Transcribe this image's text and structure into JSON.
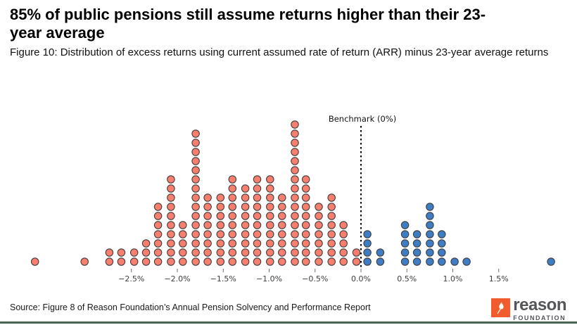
{
  "chart_data": {
    "type": "scatter",
    "subtype": "dot-distribution-histogram",
    "title": "85% of public pensions still assume returns higher than their 23-year average",
    "subtitle": "Figure 10: Distribution of excess returns using current assumed rate of return (ARR) minus 23-year average returns",
    "xlabel": "",
    "ylabel": "",
    "xlim": [
      -3.9,
      2.35
    ],
    "grid": false,
    "legend": "none",
    "x_axis": {
      "ticks": [
        {
          "value": -2.5,
          "label": "−2.5%"
        },
        {
          "value": -2.0,
          "label": "−2.0%"
        },
        {
          "value": -1.5,
          "label": "−1.5%"
        },
        {
          "value": -1.0,
          "label": "−1.0%"
        },
        {
          "value": -0.5,
          "label": "−0.5%"
        },
        {
          "value": 0.0,
          "label": "0.0%"
        },
        {
          "value": 0.5,
          "label": "0.5%"
        },
        {
          "value": 1.0,
          "label": "1.0%"
        },
        {
          "value": 1.5,
          "label": "1.5%"
        }
      ]
    },
    "benchmark": {
      "value": 0,
      "label": "Benchmark (0%)",
      "line_style": "dotted",
      "line_color": "#000000"
    },
    "colors": {
      "negative": "#F87E6E",
      "positive": "#3E7DC4",
      "dot_stroke": "#3F3F3F"
    },
    "columns": [
      {
        "x": -3.55,
        "count": 1,
        "group": "negative"
      },
      {
        "x": -3.01,
        "count": 1,
        "group": "negative"
      },
      {
        "x": -2.74,
        "count": 2,
        "group": "negative"
      },
      {
        "x": -2.61,
        "count": 2,
        "group": "negative"
      },
      {
        "x": -2.47,
        "count": 2,
        "group": "negative"
      },
      {
        "x": -2.34,
        "count": 3,
        "group": "negative"
      },
      {
        "x": -2.21,
        "count": 7,
        "group": "negative"
      },
      {
        "x": -2.07,
        "count": 10,
        "group": "negative"
      },
      {
        "x": -1.94,
        "count": 5,
        "group": "negative"
      },
      {
        "x": -1.8,
        "count": 15,
        "group": "negative"
      },
      {
        "x": -1.67,
        "count": 8,
        "group": "negative"
      },
      {
        "x": -1.53,
        "count": 8,
        "group": "negative"
      },
      {
        "x": -1.4,
        "count": 10,
        "group": "negative"
      },
      {
        "x": -1.26,
        "count": 9,
        "group": "negative"
      },
      {
        "x": -1.13,
        "count": 10,
        "group": "negative"
      },
      {
        "x": -0.99,
        "count": 10,
        "group": "negative"
      },
      {
        "x": -0.86,
        "count": 8,
        "group": "negative"
      },
      {
        "x": -0.72,
        "count": 16,
        "group": "negative"
      },
      {
        "x": -0.6,
        "count": 10,
        "group": "negative"
      },
      {
        "x": -0.46,
        "count": 7,
        "group": "negative"
      },
      {
        "x": -0.32,
        "count": 8,
        "group": "negative"
      },
      {
        "x": -0.19,
        "count": 5,
        "group": "negative"
      },
      {
        "x": -0.05,
        "count": 2,
        "group": "negative"
      },
      {
        "x": 0.07,
        "count": 4,
        "group": "positive"
      },
      {
        "x": 0.21,
        "count": 2,
        "group": "positive"
      },
      {
        "x": 0.48,
        "count": 5,
        "group": "positive"
      },
      {
        "x": 0.61,
        "count": 4,
        "group": "positive"
      },
      {
        "x": 0.75,
        "count": 7,
        "group": "positive"
      },
      {
        "x": 0.88,
        "count": 4,
        "group": "positive"
      },
      {
        "x": 1.02,
        "count": 1,
        "group": "positive"
      },
      {
        "x": 1.15,
        "count": 1,
        "group": "positive"
      },
      {
        "x": 2.07,
        "count": 1,
        "group": "positive"
      }
    ]
  },
  "source": {
    "text": "Source: Figure 8 of Reason Foundation’s Annual Pension Solvency and Performance Report"
  },
  "logo": {
    "brand": "reason",
    "sub_brand": "FOUNDATION",
    "accent_color": "#F15B2E",
    "text_color": "#54565A"
  },
  "styles": {
    "bottom_border_color": "#466552"
  }
}
